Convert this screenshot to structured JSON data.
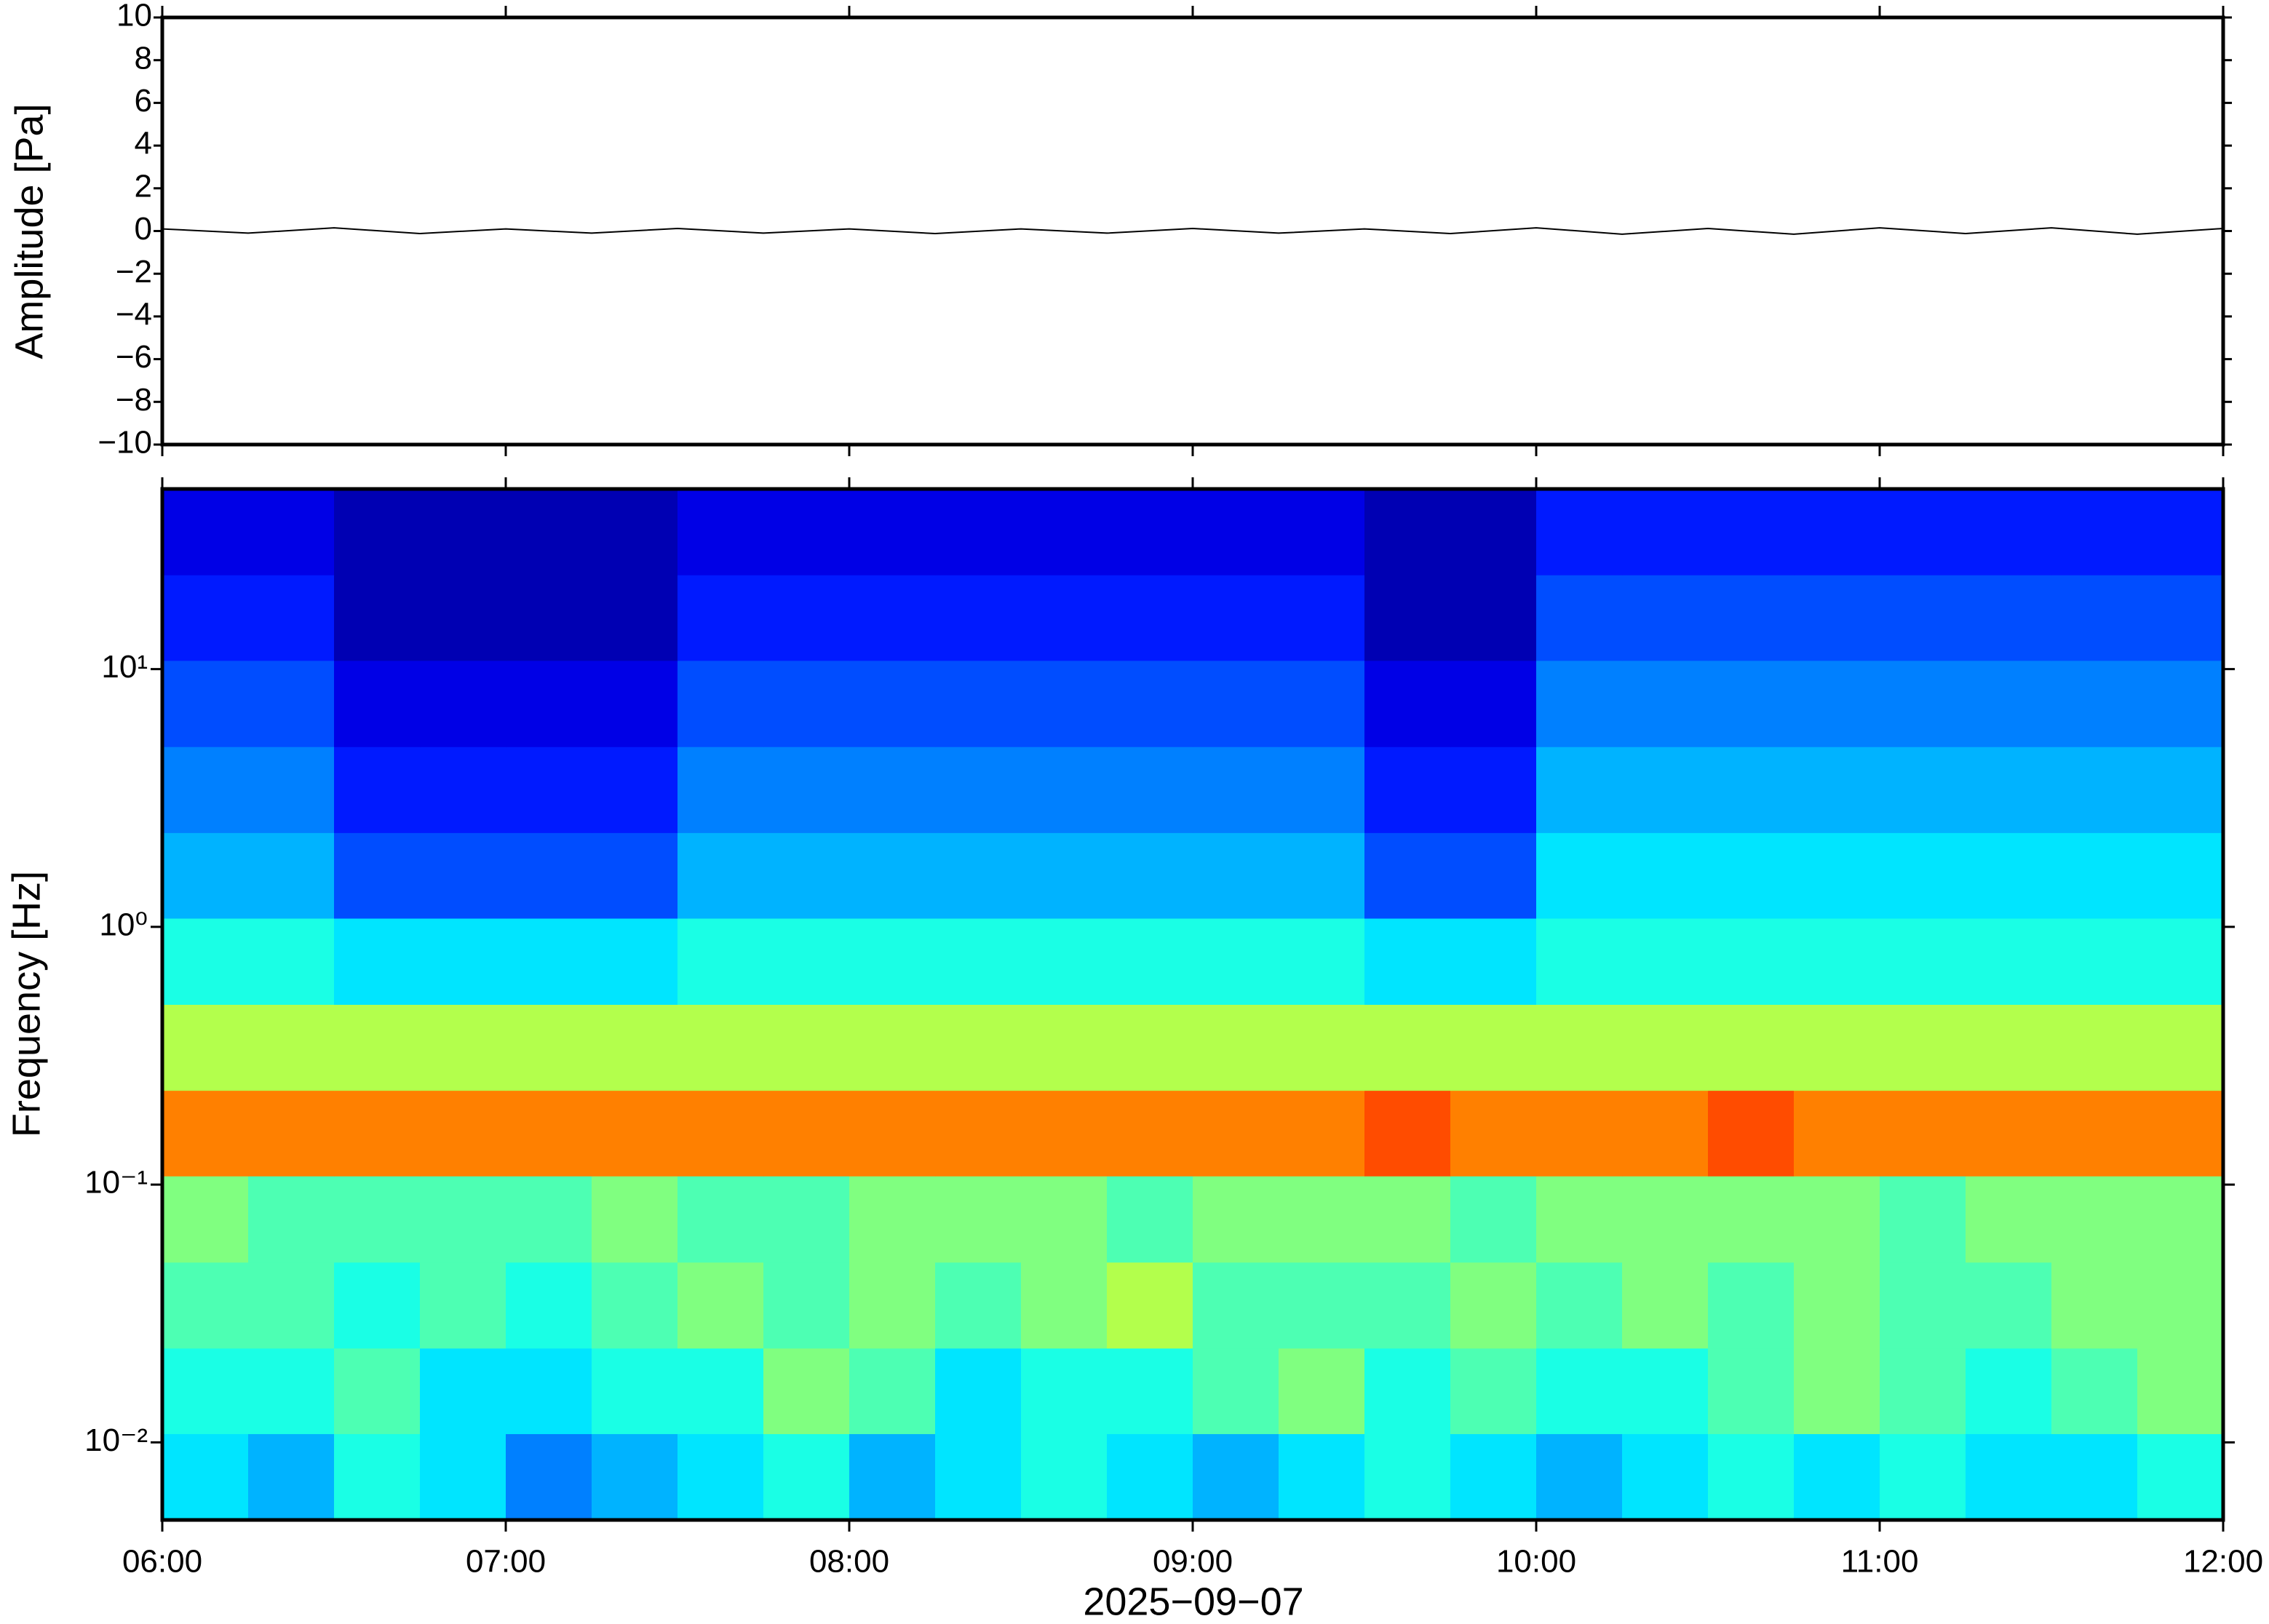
{
  "chart_data": [
    {
      "type": "line",
      "ylabel": "Amplitude [Pa]",
      "x": [
        "06:00",
        "06:15",
        "06:30",
        "06:45",
        "07:00",
        "07:15",
        "07:30",
        "07:45",
        "08:00",
        "08:15",
        "08:30",
        "08:45",
        "09:00",
        "09:15",
        "09:30",
        "09:45",
        "10:00",
        "10:15",
        "10:30",
        "10:45",
        "11:00",
        "11:15",
        "11:30",
        "11:45",
        "12:00"
      ],
      "series": [
        {
          "color": "#000000",
          "values": [
            0.1,
            -0.1,
            0.15,
            -0.12,
            0.1,
            -0.1,
            0.12,
            -0.1,
            0.1,
            -0.12,
            0.1,
            -0.1,
            0.12,
            -0.1,
            0.1,
            -0.12,
            0.15,
            -0.15,
            0.12,
            -0.15,
            0.15,
            -0.12,
            0.15,
            -0.15,
            0.12
          ]
        }
      ],
      "xlim": [
        "06:00",
        "12:00"
      ],
      "ylim": [
        -10,
        10
      ],
      "yticks": [
        {
          "value": -10,
          "label": "−10"
        },
        {
          "value": -8,
          "label": "−8"
        },
        {
          "value": -6,
          "label": "−6"
        },
        {
          "value": -4,
          "label": "−4"
        },
        {
          "value": -2,
          "label": "−2"
        },
        0,
        2,
        4,
        6,
        8,
        10
      ]
    },
    {
      "type": "heatmap",
      "ylabel": "Frequency [Hz]",
      "xlabel": "2025−09−07",
      "xbins": [
        "06:00",
        "06:15",
        "06:30",
        "06:45",
        "07:00",
        "07:15",
        "07:30",
        "07:45",
        "08:00",
        "08:15",
        "08:30",
        "08:45",
        "09:00",
        "09:15",
        "09:30",
        "09:45",
        "10:00",
        "10:15",
        "10:30",
        "10:45",
        "11:00",
        "11:15",
        "11:30",
        "11:45",
        "12:00"
      ],
      "ybins": [
        0.005,
        0.0108,
        0.0232,
        0.05,
        0.108,
        0.232,
        0.5,
        1.08,
        2.32,
        5,
        10.8,
        23.2,
        50
      ],
      "z": [
        [
          3.5,
          3,
          4,
          3.5,
          2.5,
          3,
          3.5,
          4,
          3,
          3.5,
          4,
          3.5,
          3,
          3.5,
          4,
          3.5,
          3,
          3.5,
          4,
          3.5,
          4,
          3.5,
          3.5,
          4
        ],
        [
          4,
          4,
          4.5,
          3.5,
          3.5,
          4,
          4,
          5,
          4.5,
          3.5,
          4,
          4,
          4.5,
          5,
          4,
          4.5,
          4,
          4,
          4.5,
          5,
          4.5,
          4,
          4.5,
          5
        ],
        [
          4.5,
          4.5,
          4,
          4.5,
          4,
          4.5,
          5,
          4.5,
          5,
          4.5,
          5,
          5.5,
          4.5,
          4.5,
          4.5,
          5,
          4.5,
          5,
          4.5,
          5,
          4.5,
          4.5,
          5,
          5
        ],
        [
          5,
          4.5,
          4.5,
          4.5,
          4.5,
          5,
          4.5,
          4.5,
          5,
          5,
          5,
          4.5,
          5,
          5,
          5,
          4.5,
          5,
          5,
          5,
          5,
          4.5,
          5,
          5,
          5
        ],
        [
          7.5,
          7.5,
          7.5,
          7.5,
          7.5,
          7.5,
          7.5,
          7.5,
          7.5,
          7.5,
          7.5,
          7.5,
          7.5,
          7.5,
          8,
          7.5,
          7.5,
          7.5,
          8,
          7.5,
          7.5,
          7.5,
          7.5,
          7.5
        ],
        [
          5.5,
          5.5,
          5.5,
          5.5,
          5.5,
          5.5,
          5.5,
          5.5,
          5.5,
          5.5,
          5.5,
          5.5,
          5.5,
          5.5,
          5.5,
          5.5,
          5.5,
          5.5,
          5.5,
          5.5,
          5.5,
          5.5,
          5.5,
          5.5
        ],
        [
          4,
          4,
          3.5,
          3.5,
          3.5,
          3.5,
          4,
          4,
          4,
          4,
          4,
          4,
          4,
          4,
          3.5,
          3.5,
          4,
          4,
          4,
          4,
          4,
          4,
          4,
          4
        ],
        [
          3,
          3,
          2,
          2,
          2,
          2,
          3,
          3,
          3,
          3,
          3,
          3,
          3,
          3,
          2,
          2,
          3.5,
          3.5,
          3.5,
          3.5,
          3.5,
          3.5,
          3.5,
          3.5
        ],
        [
          2.5,
          2.5,
          1.5,
          1.5,
          1.5,
          1.5,
          2.5,
          2.5,
          2.5,
          2.5,
          2.5,
          2.5,
          2.5,
          2.5,
          1.5,
          1.5,
          3,
          3,
          3,
          3,
          3,
          3,
          3,
          3
        ],
        [
          2,
          2,
          1,
          1,
          1,
          1,
          2,
          2,
          2,
          2,
          2,
          2,
          2,
          2,
          1,
          1,
          2.5,
          2.5,
          2.5,
          2.5,
          2.5,
          2.5,
          2.5,
          2.5
        ],
        [
          1.5,
          1.5,
          0.5,
          0.5,
          0.5,
          0.5,
          1.5,
          1.5,
          1.5,
          1.5,
          1.5,
          1.5,
          1.5,
          1.5,
          0.5,
          0.5,
          2,
          2,
          2,
          2,
          2,
          2,
          2,
          2
        ],
        [
          1,
          1,
          0.5,
          0.5,
          0.5,
          0.5,
          1,
          1,
          1,
          1,
          1,
          1,
          1,
          1,
          0.5,
          0.5,
          1.5,
          1.5,
          1.5,
          1.5,
          1.5,
          1.5,
          1.5,
          1.5
        ]
      ],
      "colormap": "jet",
      "zlim": [
        0,
        10
      ],
      "xlim": [
        "06:00",
        "12:00"
      ],
      "xticks": [
        "06:00",
        "07:00",
        "08:00",
        "09:00",
        "10:00",
        "11:00",
        "12:00"
      ],
      "ylim": [
        0.005,
        50
      ],
      "yscale": "log",
      "yticks": [
        {
          "value": 0.01,
          "label": "10⁻²"
        },
        {
          "value": 0.1,
          "label": "10⁻¹"
        },
        {
          "value": 1,
          "label": "10⁰"
        },
        {
          "value": 10,
          "label": "10¹"
        }
      ]
    }
  ]
}
